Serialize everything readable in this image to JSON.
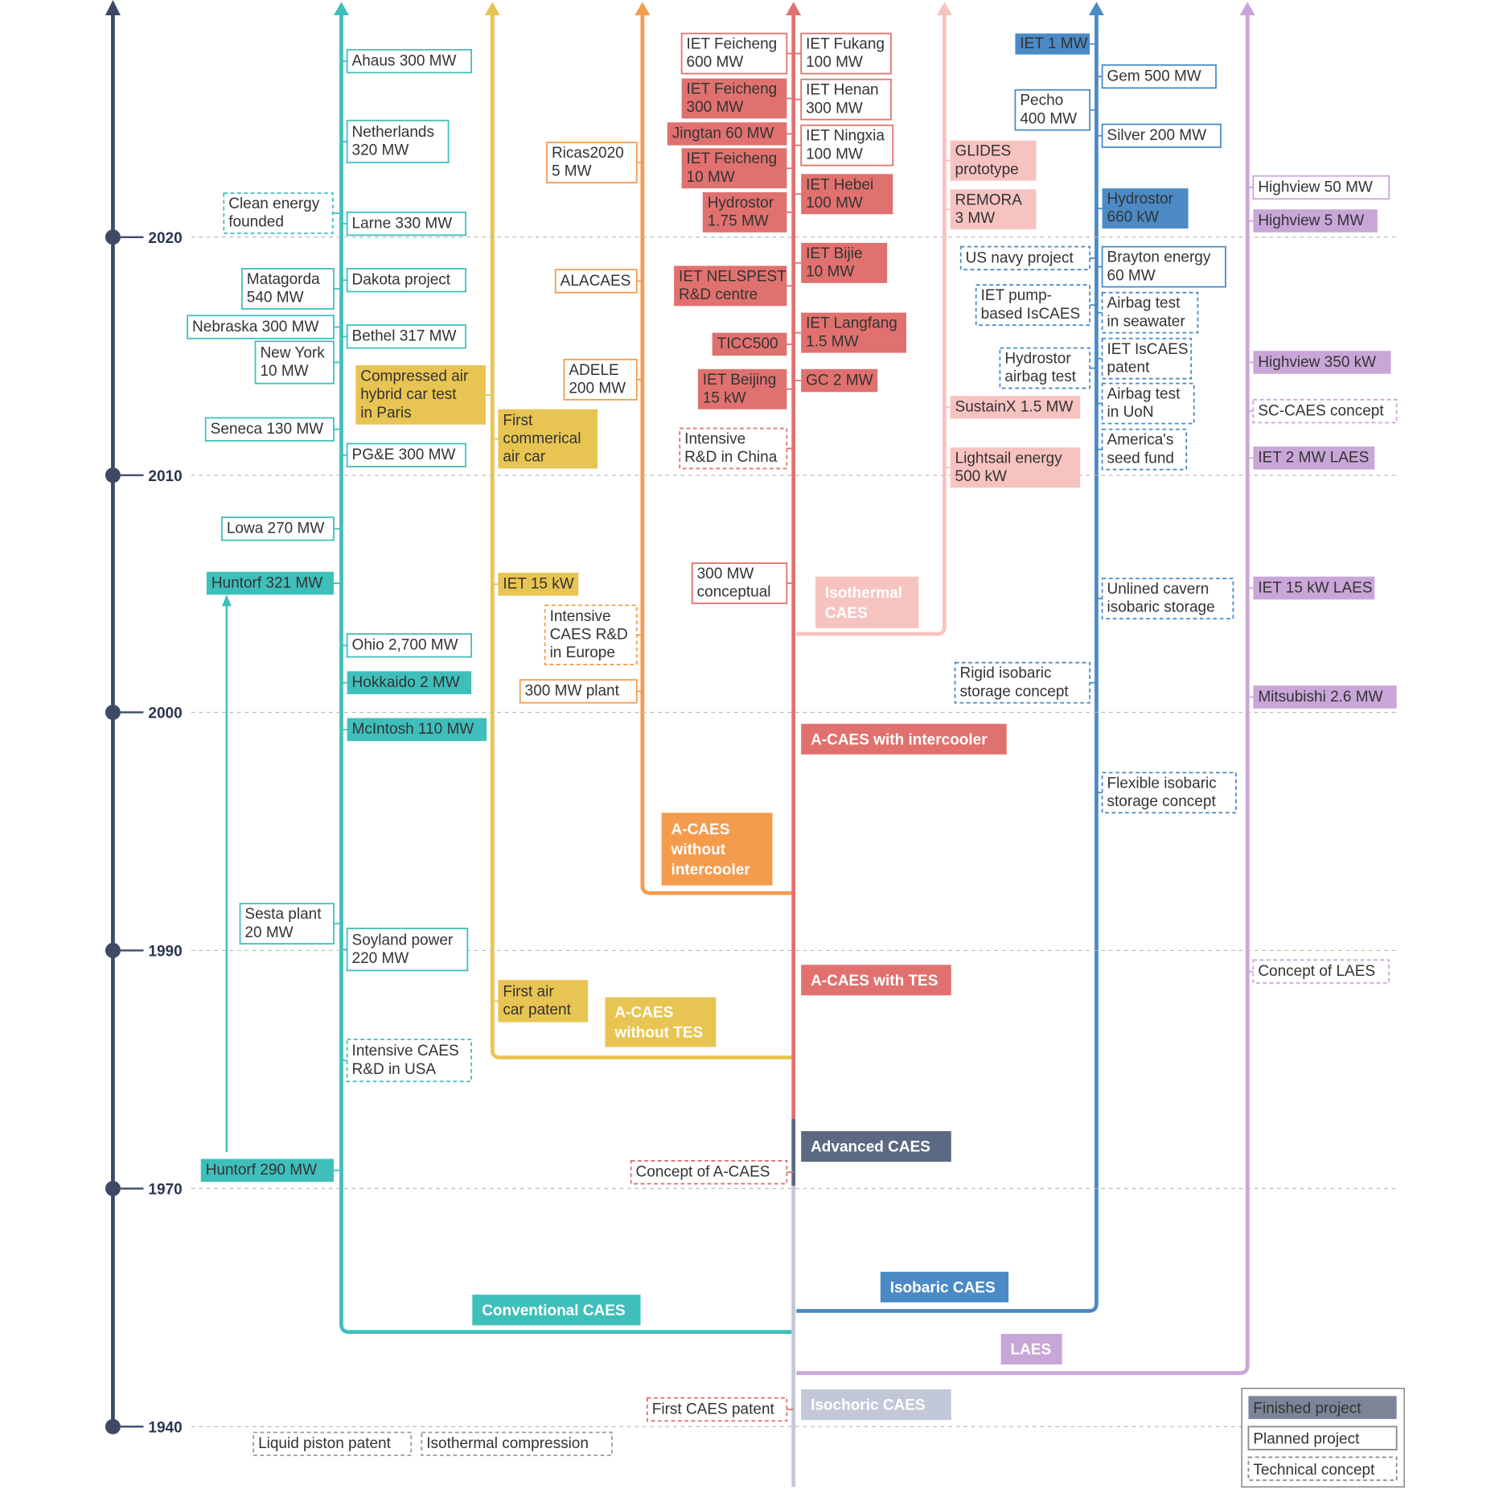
{
  "years": [
    "2020",
    "2010",
    "2000",
    "1990",
    "1970",
    "1940"
  ],
  "boxes": [
    {
      "lines": [
        "Ahaus 300 MW"
      ]
    },
    {
      "lines": [
        "Netherlands",
        "320 MW"
      ]
    },
    {
      "lines": [
        "Larne 330 MW"
      ]
    },
    {
      "lines": [
        "Dakota project"
      ]
    },
    {
      "lines": [
        "Bethel 317 MW"
      ]
    },
    {
      "lines": [
        "PG&E 300 MW"
      ]
    },
    {
      "lines": [
        "Ohio 2,700 MW"
      ]
    },
    {
      "lines": [
        "Hokkaido 2 MW"
      ]
    },
    {
      "lines": [
        "McIntosh 110 MW"
      ]
    },
    {
      "lines": [
        "Soyland power",
        "220 MW"
      ]
    },
    {
      "lines": [
        "Intensive CAES",
        "R&D in USA"
      ]
    },
    {
      "lines": [
        "Clean energy",
        "founded"
      ]
    },
    {
      "lines": [
        "Matagorda",
        "540 MW"
      ]
    },
    {
      "lines": [
        "Nebraska 300 MW"
      ]
    },
    {
      "lines": [
        "New York",
        "10 MW"
      ]
    },
    {
      "lines": [
        "Seneca 130 MW"
      ]
    },
    {
      "lines": [
        "Lowa 270 MW"
      ]
    },
    {
      "lines": [
        "Huntorf 321 MW"
      ]
    },
    {
      "lines": [
        "Sesta plant",
        "20 MW"
      ]
    },
    {
      "lines": [
        "Huntorf 290 MW"
      ]
    },
    {
      "lines": [
        "Conventional CAES"
      ]
    },
    {
      "lines": [
        "First",
        "commerical",
        "air car"
      ]
    },
    {
      "lines": [
        "IET 15 kW"
      ]
    },
    {
      "lines": [
        "First air",
        "car patent"
      ]
    },
    {
      "lines": [
        "A-CAES",
        "without TES"
      ]
    },
    {
      "lines": [
        "Compressed air",
        "hybrid car test",
        "in Paris"
      ]
    },
    {
      "lines": [
        "Ricas2020",
        "5 MW"
      ]
    },
    {
      "lines": [
        "ALACAES"
      ]
    },
    {
      "lines": [
        "ADELE",
        "200 MW"
      ]
    },
    {
      "lines": [
        "Intensive",
        "CAES R&D",
        "in Europe"
      ]
    },
    {
      "lines": [
        "300 MW plant"
      ]
    },
    {
      "lines": [
        "A-CAES",
        "without",
        "intercooler"
      ]
    },
    {
      "lines": [
        "IET Feicheng",
        "600 MW"
      ]
    },
    {
      "lines": [
        "IET Feicheng",
        "300 MW"
      ]
    },
    {
      "lines": [
        "Jingtan 60 MW"
      ]
    },
    {
      "lines": [
        "IET Feicheng",
        "10 MW"
      ]
    },
    {
      "lines": [
        "Hydrostor",
        "1.75 MW"
      ]
    },
    {
      "lines": [
        "IET NELSPEST",
        "R&D centre"
      ]
    },
    {
      "lines": [
        "TICC500"
      ]
    },
    {
      "lines": [
        "IET Beijing",
        "15 kW"
      ]
    },
    {
      "lines": [
        "Intensive",
        "R&D in China"
      ]
    },
    {
      "lines": [
        "300 MW",
        "conceptual"
      ]
    },
    {
      "lines": [
        "Concept of A-CAES"
      ]
    },
    {
      "lines": [
        "First CAES patent"
      ]
    },
    {
      "lines": [
        "IET Fukang",
        "100 MW"
      ]
    },
    {
      "lines": [
        "IET Henan",
        "300 MW"
      ]
    },
    {
      "lines": [
        "IET Ningxia",
        "100 MW"
      ]
    },
    {
      "lines": [
        "IET Hebei",
        "100 MW"
      ]
    },
    {
      "lines": [
        "IET Bijie",
        "10 MW"
      ]
    },
    {
      "lines": [
        "IET Langfang",
        "1.5 MW"
      ]
    },
    {
      "lines": [
        "GC 2 MW"
      ]
    },
    {
      "lines": [
        "A-CAES with intercooler"
      ]
    },
    {
      "lines": [
        "A-CAES with TES"
      ]
    },
    {
      "lines": [
        "Advanced CAES"
      ]
    },
    {
      "lines": [
        "Isochoric CAES"
      ]
    },
    {
      "lines": [
        "GLIDES",
        "prototype"
      ]
    },
    {
      "lines": [
        "REMORA",
        "3 MW"
      ]
    },
    {
      "lines": [
        "SustainX 1.5 MW"
      ]
    },
    {
      "lines": [
        "Lightsail energy",
        "500 kW"
      ]
    },
    {
      "lines": [
        "Isothermal",
        "CAES"
      ]
    },
    {
      "lines": [
        "IET 1 MW"
      ]
    },
    {
      "lines": [
        "Pecho",
        "400 MW"
      ]
    },
    {
      "lines": [
        "US navy project"
      ]
    },
    {
      "lines": [
        "IET pump-",
        "based IsCAES"
      ]
    },
    {
      "lines": [
        "Hydrostor",
        "airbag test"
      ]
    },
    {
      "lines": [
        "Rigid isobaric",
        "storage concept"
      ]
    },
    {
      "lines": [
        "Gem 500 MW"
      ]
    },
    {
      "lines": [
        "Silver 200 MW"
      ]
    },
    {
      "lines": [
        "Hydrostor",
        "660 kW"
      ]
    },
    {
      "lines": [
        "Brayton energy",
        "60 MW"
      ]
    },
    {
      "lines": [
        "Airbag test",
        "in seawater"
      ]
    },
    {
      "lines": [
        "IET IsCAES",
        "patent"
      ]
    },
    {
      "lines": [
        "Airbag test",
        "in UoN"
      ]
    },
    {
      "lines": [
        "America's",
        "seed fund"
      ]
    },
    {
      "lines": [
        "Unlined cavern",
        "isobaric storage"
      ]
    },
    {
      "lines": [
        "Flexible isobaric",
        "storage concept"
      ]
    },
    {
      "lines": [
        "Isobaric CAES"
      ]
    },
    {
      "lines": [
        "Highview 50 MW"
      ]
    },
    {
      "lines": [
        "Highview 5 MW"
      ]
    },
    {
      "lines": [
        "Highview 350 kW"
      ]
    },
    {
      "lines": [
        "SC-CAES concept"
      ]
    },
    {
      "lines": [
        "IET 2 MW LAES"
      ]
    },
    {
      "lines": [
        "IET 15 kW LAES"
      ]
    },
    {
      "lines": [
        "Mitsubishi 2.6 MW"
      ]
    },
    {
      "lines": [
        "Concept of LAES"
      ]
    },
    {
      "lines": [
        "LAES"
      ]
    },
    {
      "lines": [
        "Liquid piston patent"
      ]
    },
    {
      "lines": [
        "Isothermal compression"
      ]
    }
  ],
  "legend": [
    "Finished project",
    "Planned project",
    "Technical concept"
  ]
}
